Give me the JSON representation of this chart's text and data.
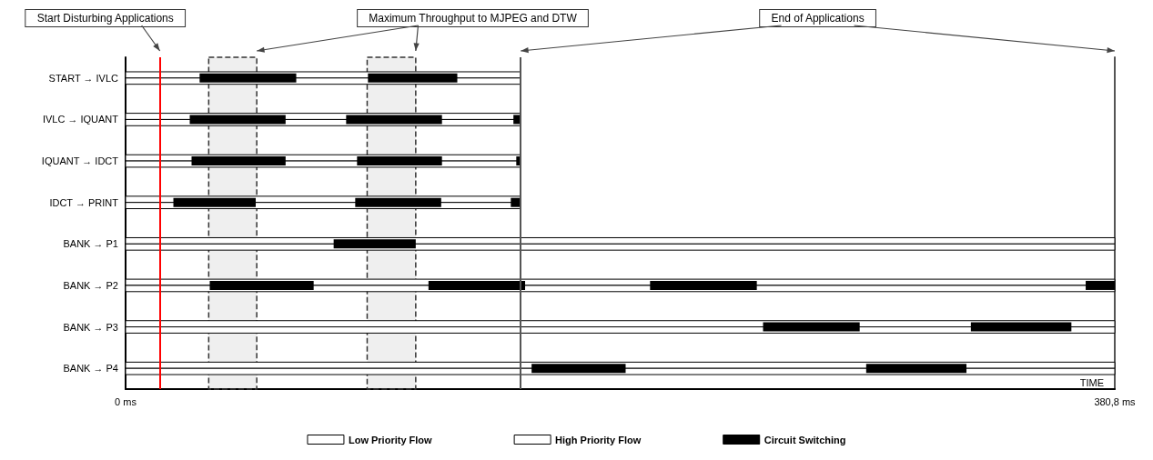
{
  "chart_data": {
    "type": "bar",
    "orientation": "horizontal",
    "xlabel": "TIME",
    "categories": [
      "START → IVLC",
      "IVLC → IQUANT",
      "IQUANT → IDCT",
      "IDCT → PRINT",
      "BANK → P1",
      "BANK → P2",
      "BANK → P3",
      "BANK → P4"
    ],
    "xlim": [
      0,
      380.8
    ],
    "xticks": [
      {
        "value": 0,
        "label": "0 ms"
      },
      {
        "value": 380.8,
        "label": "380,8 ms"
      }
    ],
    "legend": "bottom",
    "series": [
      {
        "name": "Low Priority Flow",
        "color": "#ffffff",
        "values": [
          152.1,
          152.1,
          152.1,
          152.1,
          380.8,
          380.8,
          380.8,
          380.8
        ]
      },
      {
        "name": "High Priority Flow",
        "color": "#ffffff",
        "values": [
          152.1,
          152.1,
          152.1,
          152.1,
          380.8,
          380.8,
          380.8,
          380.8
        ]
      },
      {
        "name": "Circuit Switching",
        "color": "#000000",
        "base": [
          28.5,
          24.7,
          25.4,
          18.4,
          80.1,
          32.4,
          245.4,
          156.3
        ],
        "values": [
          37.2,
          36.9,
          36.2,
          31.7,
          31.6,
          40,
          37.2,
          36.2
        ]
      },
      {
        "color": "#000000",
        "base": [
          93.3,
          84.9,
          89.1,
          88.4,
          null,
          116.6,
          325.4,
          285.1
        ],
        "values": [
          34.4,
          36.9,
          32.7,
          33.1,
          null,
          37.2,
          38.7,
          38.6
        ]
      },
      {
        "color": "#000000",
        "base": [
          null,
          149.3,
          150.4,
          148.3,
          null,
          201.9,
          null,
          null
        ],
        "values": [
          null,
          2.8,
          1.7,
          3.8,
          null,
          41.1,
          null,
          null
        ]
      },
      {
        "color": "#000000",
        "base": [
          null,
          null,
          null,
          null,
          null,
          369.6,
          null,
          null
        ],
        "values": [
          null,
          null,
          null,
          null,
          null,
          11.2,
          null,
          null
        ]
      }
    ],
    "ref_lines": [
      {
        "axis": "x",
        "value": 13.2,
        "label": "Start Disturbing Applications",
        "color": "#ff0000"
      },
      {
        "axis": "x",
        "value": 152.1,
        "label": "End of Applications",
        "color": "#555555"
      }
    ],
    "bands": [
      {
        "axis": "x",
        "from": 32,
        "to": 50.5,
        "color": "#333333"
      },
      {
        "axis": "x",
        "from": 93,
        "to": 111.7,
        "color": "#333333"
      }
    ],
    "annotations": [
      "Maximum Throughput to MJPEG and DTW"
    ]
  }
}
